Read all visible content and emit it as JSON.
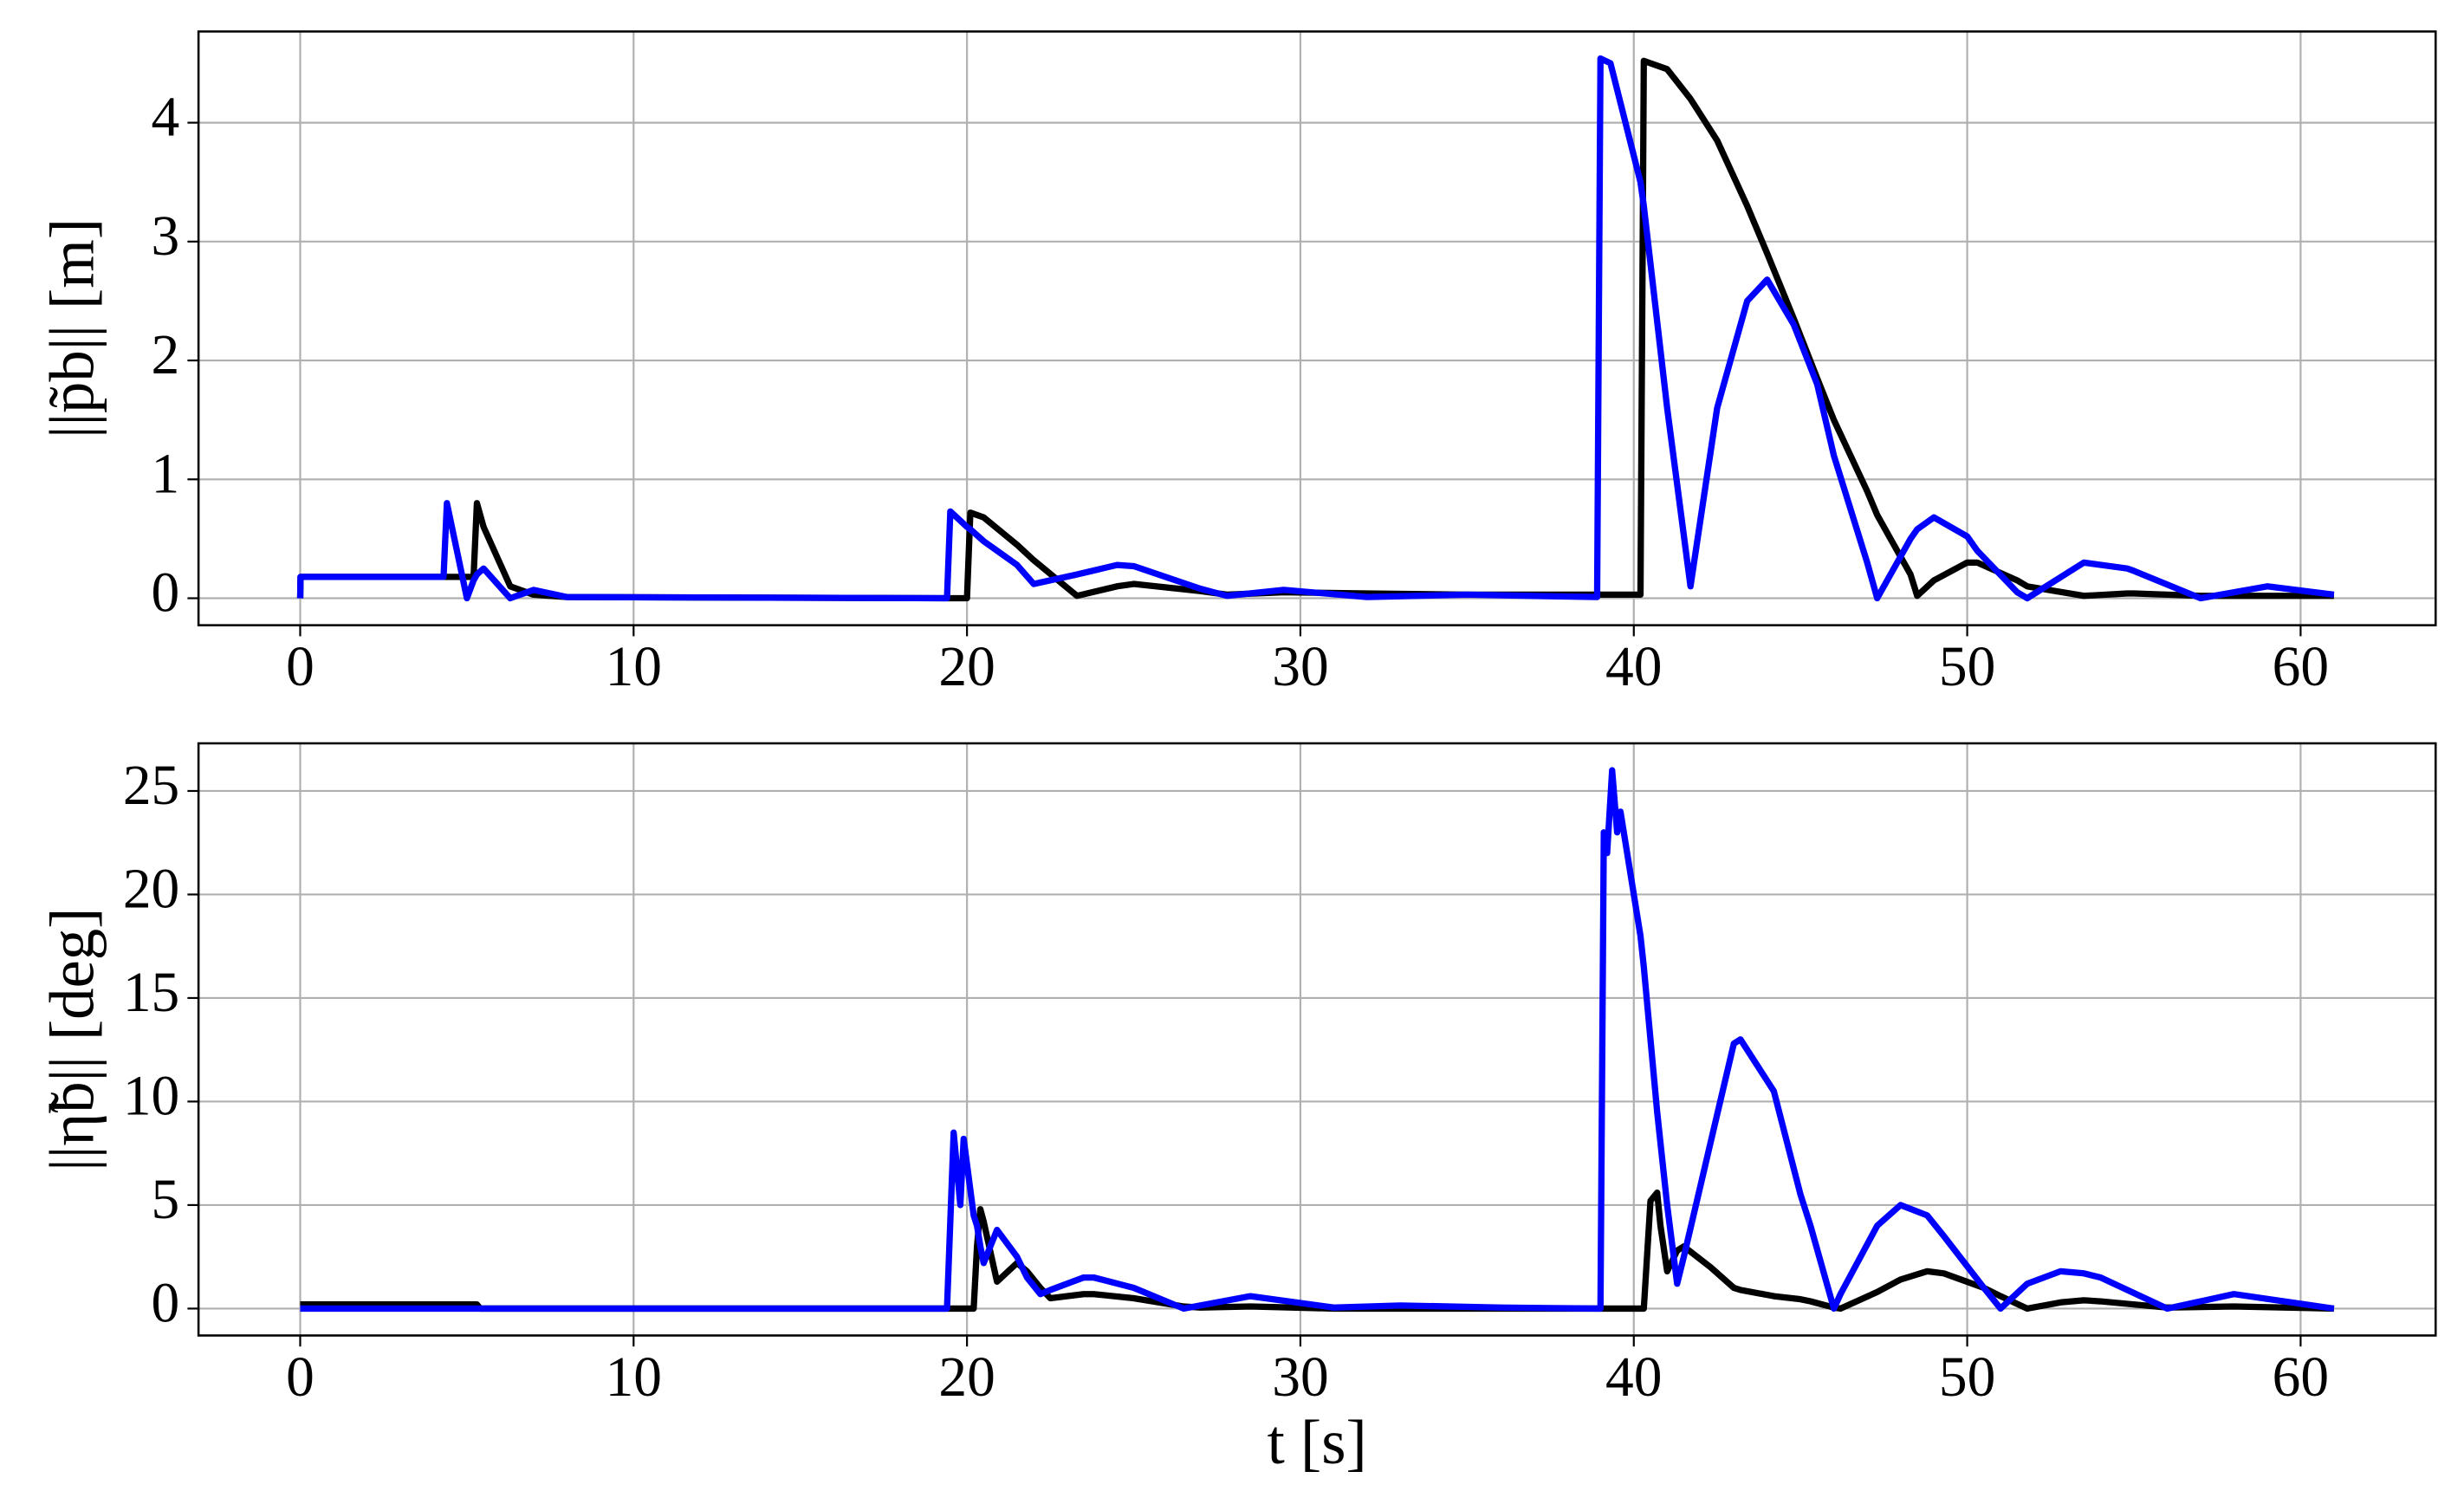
{
  "chart_data": [
    {
      "type": "line",
      "ylabel": "||p̃b|| [m]",
      "x": [
        0,
        0.01,
        4.3,
        4.4,
        5.0,
        5.2,
        5.3,
        5.5,
        6.3,
        7,
        8,
        19.4,
        19.5,
        20.0,
        20.1,
        20.5,
        21.5,
        22,
        23.3,
        24.5,
        25,
        27,
        27.8,
        29.5,
        32,
        35,
        38.9,
        39,
        39.3,
        40.2,
        40.3,
        41,
        41.7,
        42.5,
        43.4,
        44,
        44.8,
        45.5,
        46,
        47,
        47.3,
        48.3,
        48.5,
        49,
        50,
        50.3,
        51.5,
        51.8,
        53.5,
        54.8,
        55,
        57,
        59,
        61
      ],
      "series": [
        {
          "color": "#000000",
          "values": [
            0,
            0.18,
            0.18,
            0.18,
            0.18,
            0.18,
            0.8,
            0.6,
            0.1,
            0.03,
            0.01,
            0,
            0,
            0,
            0.72,
            0.68,
            0.45,
            0.32,
            0.02,
            0.1,
            0.12,
            0.06,
            0.03,
            0.05,
            0.04,
            0.03,
            0.03,
            0.03,
            0.03,
            0.03,
            4.52,
            4.45,
            4.2,
            3.85,
            3.3,
            2.9,
            2.35,
            1.85,
            1.5,
            0.9,
            0.7,
            0.2,
            0.02,
            0.15,
            0.3,
            0.3,
            0.15,
            0.1,
            0.02,
            0.04,
            0.04,
            0.02,
            0.02,
            0.02
          ]
        },
        {
          "color": "#0000ff",
          "values": [
            0,
            0.18,
            0.18,
            0.8,
            0,
            0.15,
            0.2,
            0.25,
            0,
            0.07,
            0.01,
            0,
            0.73,
            0.6,
            0.58,
            0.48,
            0.28,
            0.12,
            0.2,
            0.28,
            0.27,
            0.08,
            0.02,
            0.07,
            0.01,
            0.03,
            0.01,
            4.54,
            4.5,
            3.5,
            3.3,
            1.6,
            0.1,
            1.6,
            2.5,
            2.68,
            2.3,
            1.8,
            1.2,
            0.3,
            0,
            0.5,
            0.58,
            0.68,
            0.52,
            0.4,
            0.05,
            0,
            0.3,
            0.25,
            0.23,
            0,
            0.1,
            0.03
          ]
        }
      ],
      "xlim": [
        -3.05,
        64.05
      ],
      "xticks": [
        0,
        10,
        20,
        30,
        40,
        50,
        60
      ],
      "ylim": [
        -0.227,
        4.767
      ],
      "yticks": [
        0,
        1,
        2,
        3,
        4
      ],
      "grid": true
    },
    {
      "type": "line",
      "xlabel": "t [s]",
      "ylabel": "||η̃b|| [deg]",
      "x": [
        0,
        5.3,
        5.4,
        19.4,
        19.6,
        19.8,
        19.9,
        20.2,
        20.3,
        20.4,
        20.5,
        20.9,
        21.5,
        21.8,
        22.2,
        22.5,
        23.5,
        23.8,
        25,
        26.5,
        27,
        28.5,
        31,
        33,
        36,
        39,
        39.1,
        39.2,
        39.35,
        39.5,
        39.6,
        40.2,
        40.3,
        40.5,
        40.7,
        40.8,
        41,
        41.3,
        41.5,
        42.3,
        43,
        43.2,
        44.2,
        45,
        45.3,
        46,
        46.2,
        47.3,
        48,
        48.8,
        49.3,
        50.5,
        51,
        51.8,
        52.8,
        53.5,
        54,
        56,
        58,
        61
      ],
      "series": [
        {
          "color": "#000000",
          "values": [
            0.2,
            0.2,
            0,
            0,
            0,
            0,
            0,
            0,
            3,
            4.8,
            4.2,
            1.3,
            2.2,
            1.8,
            1.0,
            0.5,
            0.7,
            0.7,
            0.5,
            0.1,
            0.05,
            0.1,
            0,
            0,
            0,
            0,
            0,
            0,
            0,
            0,
            0,
            0,
            0,
            5.2,
            5.6,
            4,
            1.8,
            2.8,
            3.0,
            2.0,
            1.0,
            0.9,
            0.6,
            0.45,
            0.35,
            0.05,
            0,
            0.8,
            1.4,
            1.8,
            1.7,
            1.0,
            0.6,
            0,
            0.3,
            0.4,
            0.35,
            0.05,
            0.1,
            0
          ]
        },
        {
          "color": "#0000ff",
          "values": [
            0,
            0,
            0,
            0,
            8.5,
            5,
            8.2,
            4.5,
            4,
            3,
            2.2,
            3.8,
            2.5,
            1.5,
            0.7,
            0.9,
            1.5,
            1.5,
            1.0,
            0,
            0.15,
            0.6,
            0.05,
            0.15,
            0.05,
            0,
            23,
            22,
            26,
            23,
            24,
            18,
            16.5,
            13,
            9.5,
            8,
            5,
            1.2,
            2.5,
            8,
            12.8,
            13,
            10.5,
            5.5,
            4,
            0,
            0.7,
            4,
            5,
            4.5,
            3.5,
            1,
            0,
            1.2,
            1.8,
            1.7,
            1.5,
            0,
            0.7,
            0
          ]
        }
      ],
      "xlim": [
        -3.05,
        64.05
      ],
      "xticks": [
        0,
        10,
        20,
        30,
        40,
        50,
        60
      ],
      "ylim": [
        -1.3,
        27.3
      ],
      "yticks": [
        0,
        5,
        10,
        15,
        20,
        25
      ],
      "grid": true
    }
  ]
}
